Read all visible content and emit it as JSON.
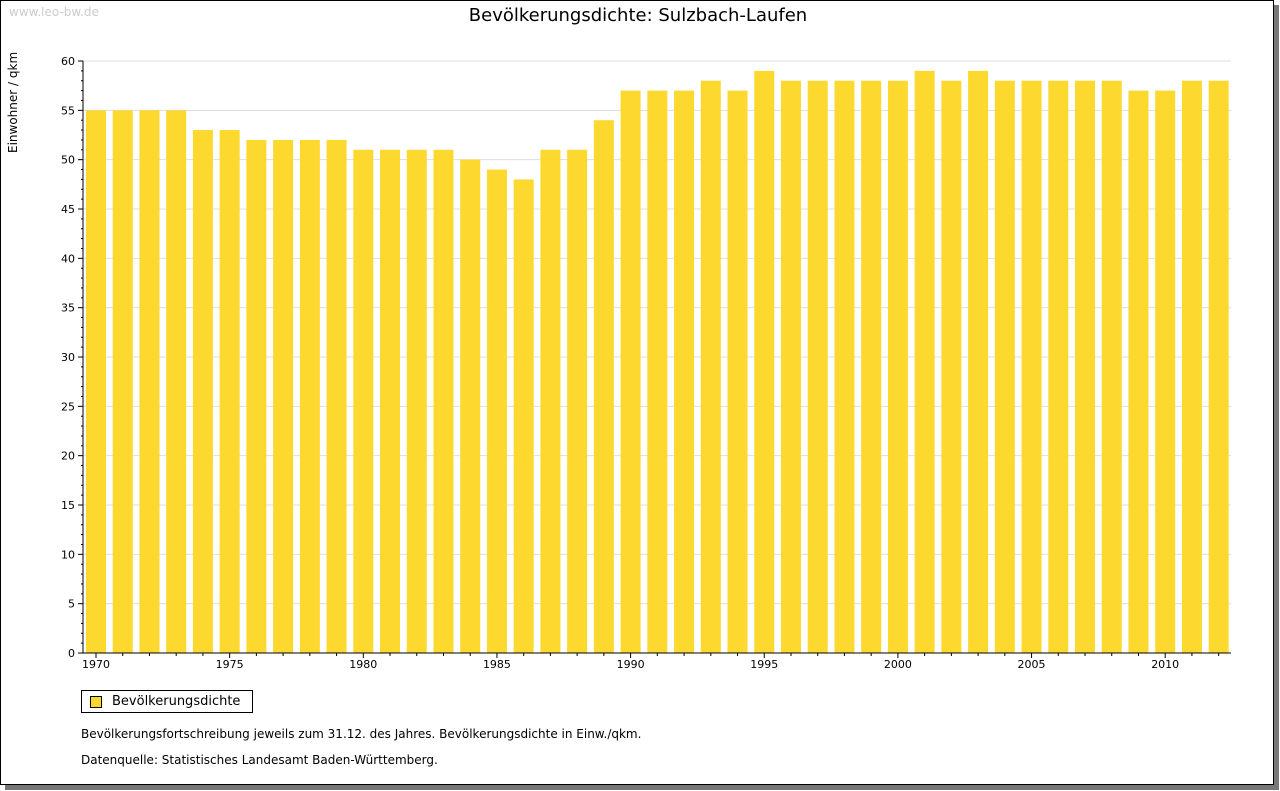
{
  "watermark": "www.leo-bw.de",
  "chart_data": {
    "type": "bar",
    "title": "Bevölkerungsdichte: Sulzbach-Laufen",
    "xlabel": "",
    "ylabel": "Einwohner / qkm",
    "ylim": [
      0,
      60
    ],
    "yticks": [
      0,
      5,
      10,
      15,
      20,
      25,
      30,
      35,
      40,
      45,
      50,
      55,
      60
    ],
    "xticks": [
      1970,
      1975,
      1980,
      1985,
      1990,
      1995,
      2000,
      2005,
      2010
    ],
    "categories": [
      1970,
      1971,
      1972,
      1973,
      1974,
      1975,
      1976,
      1977,
      1978,
      1979,
      1980,
      1981,
      1982,
      1983,
      1984,
      1985,
      1986,
      1987,
      1988,
      1989,
      1990,
      1991,
      1992,
      1993,
      1994,
      1995,
      1996,
      1997,
      1998,
      1999,
      2000,
      2001,
      2002,
      2003,
      2004,
      2005,
      2006,
      2007,
      2008,
      2009,
      2010,
      2011,
      2012
    ],
    "series": [
      {
        "name": "Bevölkerungsdichte",
        "color": "#fdd82f",
        "values": [
          55,
          55,
          55,
          55,
          53,
          53,
          52,
          52,
          52,
          52,
          51,
          51,
          51,
          51,
          50,
          49,
          48,
          51,
          51,
          54,
          57,
          57,
          57,
          58,
          57,
          59,
          58,
          58,
          58,
          58,
          58,
          59,
          58,
          59,
          58,
          58,
          58,
          58,
          58,
          57,
          57,
          58,
          58
        ]
      }
    ],
    "grid": true,
    "legend": "bottom-left"
  },
  "notes": [
    "Bevölkerungsfortschreibung jeweils zum 31.12. des Jahres. Bevölkerungsdichte in Einw./qkm.",
    "Datenquelle: Statistisches Landesamt Baden-Württemberg."
  ]
}
